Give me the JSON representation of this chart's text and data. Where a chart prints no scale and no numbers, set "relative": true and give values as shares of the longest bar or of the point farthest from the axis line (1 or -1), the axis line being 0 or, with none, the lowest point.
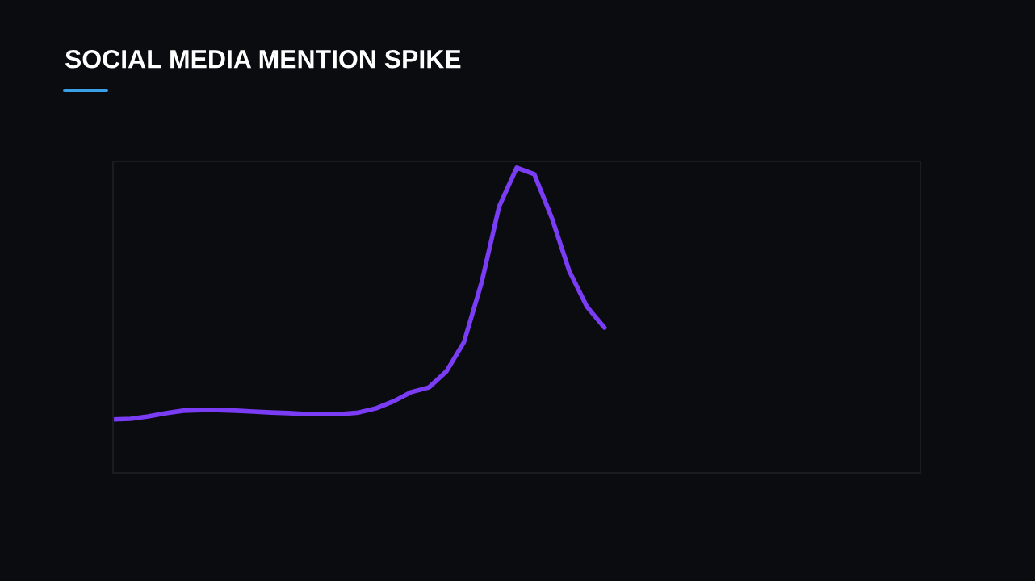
{
  "chart_data": {
    "type": "line",
    "title": "SOCIAL MEDIA MENTION SPIKE",
    "relative": true,
    "categories": [
      null,
      null,
      null,
      null,
      null,
      null,
      null,
      null,
      null,
      null,
      null,
      null,
      null,
      null,
      null,
      null,
      null,
      null,
      null,
      null,
      null,
      null,
      null,
      null,
      null,
      null,
      null,
      null,
      null,
      null,
      null,
      null,
      null,
      null,
      null,
      null,
      null,
      null,
      null,
      null,
      null,
      null,
      null,
      null,
      null,
      null,
      null
    ],
    "series": [
      {
        "color": "#7a3cf5",
        "values": [
          0.175,
          0.177,
          0.185,
          0.196,
          0.204,
          0.206,
          0.206,
          0.204,
          0.201,
          0.198,
          0.196,
          0.193,
          0.193,
          0.193,
          0.198,
          0.212,
          0.235,
          0.265,
          0.28,
          0.333,
          0.429,
          0.624,
          0.873,
          1.0,
          0.979,
          0.836,
          0.661,
          0.545,
          0.476,
          null,
          null,
          null,
          null,
          null,
          null,
          null,
          null,
          null,
          null,
          null,
          null,
          null,
          null,
          null,
          null,
          null,
          null
        ]
      }
    ],
    "marker": "none",
    "line_style": "solid",
    "grid": false,
    "legend": false
  }
}
